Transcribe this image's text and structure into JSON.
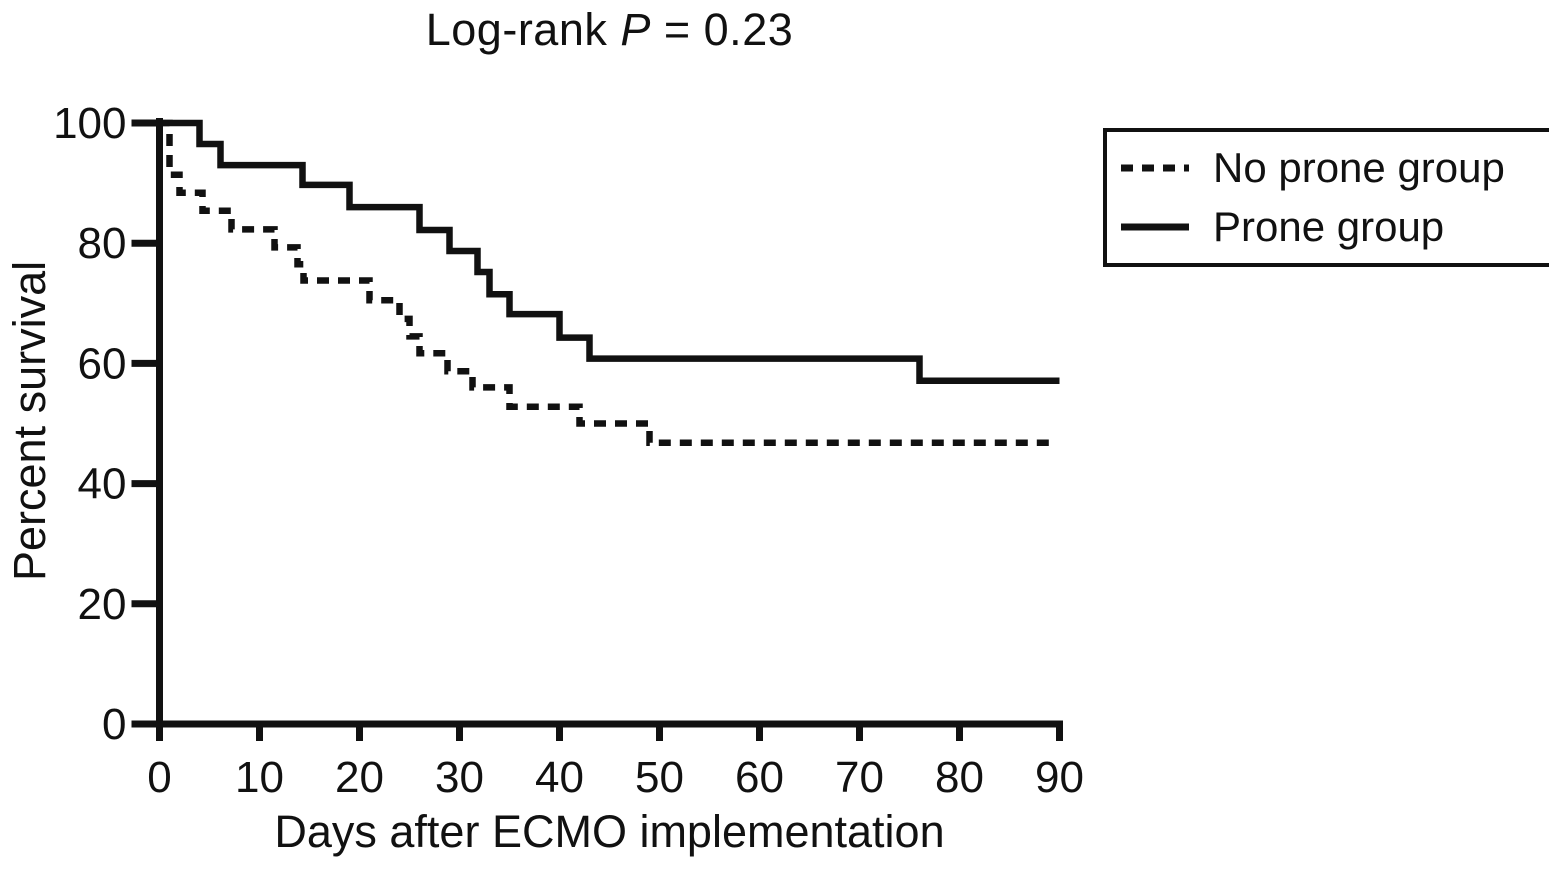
{
  "figure": {
    "title": {
      "prefix": "Log-rank ",
      "italic": "P",
      "suffix": " = 0.23"
    },
    "colors": {
      "ink": "#111111",
      "background": "#ffffff"
    }
  },
  "chart_data": {
    "type": "line",
    "subtype": "kaplan-meier-step",
    "title": "Log-rank P = 0.23",
    "xlabel": "Days after ECMO implementation",
    "ylabel": "Percent survival",
    "xlim": [
      0,
      90
    ],
    "ylim": [
      0,
      100
    ],
    "x_ticks": [
      0,
      10,
      20,
      30,
      40,
      50,
      60,
      70,
      80,
      90
    ],
    "y_ticks": [
      0,
      20,
      40,
      60,
      80,
      100
    ],
    "grid": false,
    "legend_position": "top-right",
    "series": [
      {
        "name": "No prone group",
        "style": "dashed",
        "points": [
          [
            0,
            100
          ],
          [
            1,
            100
          ],
          [
            1,
            91.4
          ],
          [
            2,
            91.4
          ],
          [
            2,
            88.4
          ],
          [
            4.3,
            88.4
          ],
          [
            4.3,
            85.4
          ],
          [
            7.2,
            85.4
          ],
          [
            7.2,
            82.3
          ],
          [
            11.5,
            82.3
          ],
          [
            11.5,
            79.3
          ],
          [
            13.8,
            79.3
          ],
          [
            13.8,
            76.5
          ],
          [
            14.4,
            76.5
          ],
          [
            14.4,
            73.8
          ],
          [
            21,
            73.8
          ],
          [
            21,
            70.5
          ],
          [
            24,
            70.5
          ],
          [
            24,
            67.4
          ],
          [
            25,
            67.4
          ],
          [
            25,
            64.5
          ],
          [
            26,
            64.5
          ],
          [
            26,
            61.7
          ],
          [
            28.8,
            61.7
          ],
          [
            28.8,
            58.7
          ],
          [
            31.3,
            58.7
          ],
          [
            31.3,
            56.0
          ],
          [
            35,
            56.0
          ],
          [
            35,
            52.8
          ],
          [
            42,
            52.8
          ],
          [
            42,
            50.0
          ],
          [
            49,
            50.0
          ],
          [
            49,
            46.8
          ],
          [
            89.5,
            46.8
          ]
        ]
      },
      {
        "name": "Prone group",
        "style": "solid",
        "points": [
          [
            0,
            100
          ],
          [
            4,
            100
          ],
          [
            4,
            96.5
          ],
          [
            6.1,
            96.5
          ],
          [
            6.1,
            93.0
          ],
          [
            14.3,
            93.0
          ],
          [
            14.3,
            89.7
          ],
          [
            19,
            89.7
          ],
          [
            19,
            86.0
          ],
          [
            26,
            86.0
          ],
          [
            26,
            82.2
          ],
          [
            29,
            82.2
          ],
          [
            29,
            78.7
          ],
          [
            31.8,
            78.7
          ],
          [
            31.8,
            75.2
          ],
          [
            33,
            75.2
          ],
          [
            33,
            71.5
          ],
          [
            35,
            71.5
          ],
          [
            35,
            68.2
          ],
          [
            40,
            68.2
          ],
          [
            40,
            64.3
          ],
          [
            43,
            64.3
          ],
          [
            43,
            60.8
          ],
          [
            76,
            60.8
          ],
          [
            76,
            57.1
          ],
          [
            90,
            57.1
          ]
        ]
      }
    ]
  }
}
